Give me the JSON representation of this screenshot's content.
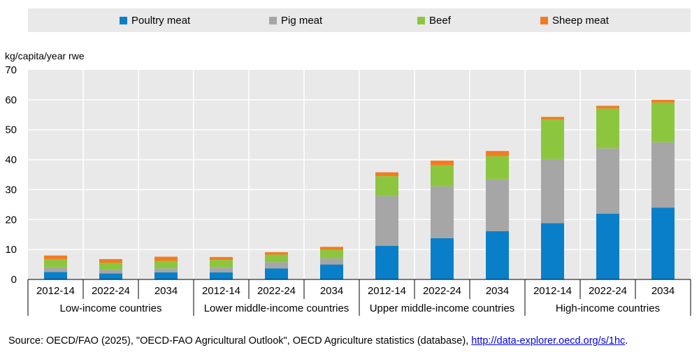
{
  "chart_data": {
    "type": "bar",
    "stacked": true,
    "ylabel": "kg/capita/year rwe",
    "ylim": [
      0,
      70
    ],
    "yticks": [
      0,
      10,
      20,
      30,
      40,
      50,
      60,
      70
    ],
    "grid": true,
    "legend_position": "top",
    "categories": [
      "2012-14",
      "2022-24",
      "2034",
      "2012-14",
      "2022-24",
      "2034",
      "2012-14",
      "2022-24",
      "2034",
      "2012-14",
      "2022-24",
      "2034"
    ],
    "groups": [
      {
        "label": "Low-income countries",
        "span": 3
      },
      {
        "label": "Lower middle-income countries",
        "span": 3
      },
      {
        "label": "Upper middle-income countries",
        "span": 3
      },
      {
        "label": "High-income countries",
        "span": 3
      }
    ],
    "series": [
      {
        "name": "Poultry meat",
        "color": "#0a7fc9",
        "values": [
          2.5,
          2.0,
          2.4,
          2.4,
          3.7,
          5.0,
          11.2,
          13.8,
          16.1,
          18.8,
          22.0,
          24.0
        ]
      },
      {
        "name": "Pig meat",
        "color": "#a6a6a6",
        "values": [
          1.5,
          1.2,
          1.3,
          1.6,
          2.1,
          2.1,
          16.7,
          17.3,
          17.3,
          21.4,
          21.8,
          21.8
        ]
      },
      {
        "name": "Beef",
        "color": "#8cc63f",
        "values": [
          2.8,
          2.4,
          2.5,
          2.5,
          2.5,
          2.8,
          6.6,
          7.0,
          7.8,
          13.2,
          13.3,
          13.3
        ]
      },
      {
        "name": "Sheep meat",
        "color": "#f47b20",
        "values": [
          1.2,
          1.2,
          1.4,
          1.0,
          0.8,
          1.0,
          1.3,
          1.6,
          1.7,
          0.9,
          0.9,
          0.9
        ]
      }
    ]
  },
  "source": {
    "text": "Source: OECD/FAO (2025), \"OECD-FAO Agricultural Outlook\", OECD Agriculture statistics (database), ",
    "link": "http://data-explorer.oecd.org/s/1hc",
    "end": "."
  }
}
